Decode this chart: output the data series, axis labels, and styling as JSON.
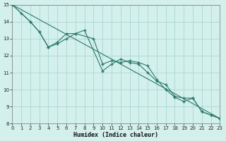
{
  "xlabel": "Humidex (Indice chaleur)",
  "bg_color": "#d4f0ec",
  "grid_color": "#a8d8d0",
  "line_color": "#2a7a68",
  "xlim": [
    0,
    23
  ],
  "ylim": [
    8,
    15
  ],
  "xticks": [
    0,
    1,
    2,
    3,
    4,
    5,
    6,
    7,
    8,
    9,
    10,
    11,
    12,
    13,
    14,
    15,
    16,
    17,
    18,
    19,
    20,
    21,
    22,
    23
  ],
  "yticks": [
    8,
    9,
    10,
    11,
    12,
    13,
    14,
    15
  ],
  "line1_x": [
    0,
    1,
    2,
    3,
    4,
    5,
    6,
    7,
    8,
    10,
    11,
    12,
    13,
    14,
    15,
    16,
    17,
    18,
    19,
    20,
    21,
    22,
    23
  ],
  "line1_y": [
    15.0,
    14.5,
    14.0,
    13.4,
    12.5,
    12.8,
    13.3,
    13.3,
    13.5,
    11.1,
    11.5,
    11.8,
    11.6,
    11.5,
    11.0,
    10.5,
    10.3,
    9.6,
    9.5,
    9.5,
    8.7,
    8.5,
    8.3
  ],
  "line2_x": [
    0,
    2,
    3,
    4,
    5,
    6,
    7,
    9,
    10,
    11,
    12,
    13,
    14,
    15,
    16,
    17,
    18,
    19,
    20,
    21,
    22,
    23
  ],
  "line2_y": [
    15.0,
    14.0,
    13.4,
    12.5,
    12.7,
    13.0,
    13.3,
    13.0,
    11.5,
    11.7,
    11.6,
    11.7,
    11.6,
    11.4,
    10.6,
    10.0,
    9.55,
    9.3,
    9.5,
    8.7,
    8.5,
    8.3
  ],
  "trend_x": [
    0,
    23
  ],
  "trend_y": [
    15.0,
    8.3
  ]
}
